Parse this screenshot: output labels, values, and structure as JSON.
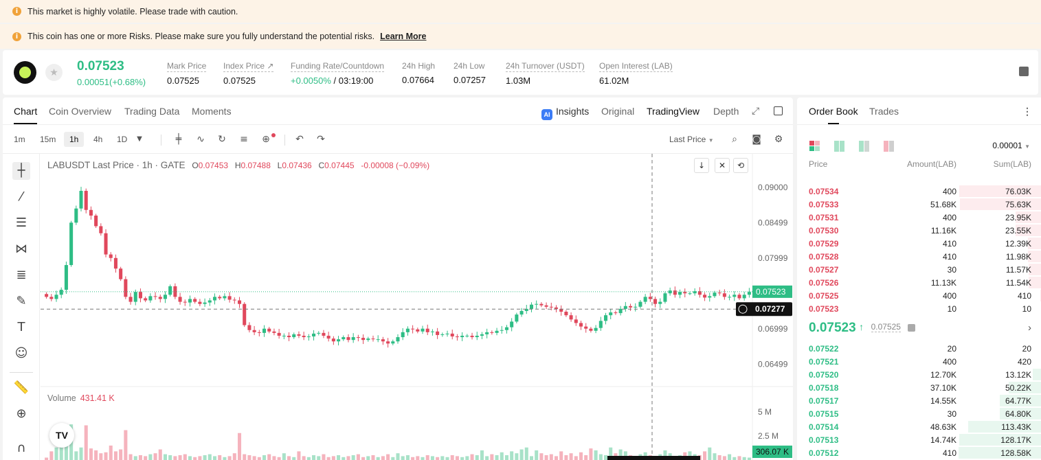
{
  "banners": {
    "warning1": "This market is highly volatile. Please trade with caution.",
    "warning2": "This coin has one or more Risks. Please make sure you fully understand the potential risks.",
    "learn_more": "Learn More"
  },
  "ticker": {
    "price": "0.07523",
    "change": "0.00051(+0.68%)",
    "stats": [
      {
        "label": "Mark Price",
        "value": "0.07525"
      },
      {
        "label": "Index Price ↗",
        "value": "0.07525"
      },
      {
        "label": "Funding Rate/Countdown",
        "value_green": "+0.0050%",
        "value": " / 03:19:00"
      },
      {
        "label": "24h High",
        "value": "0.07664"
      },
      {
        "label": "24h Low",
        "value": "0.07257"
      },
      {
        "label": "24h Turnover (USDT)",
        "value": "1.03M"
      },
      {
        "label": "Open Interest (LAB)",
        "value": "61.02M"
      }
    ]
  },
  "chart_tabs": [
    "Chart",
    "Coin Overview",
    "Trading Data",
    "Moments"
  ],
  "chart_views": {
    "insights": "Insights",
    "original": "Original",
    "tradingview": "TradingView",
    "depth": "Depth",
    "ai_badge": "AI"
  },
  "timeframes": [
    "1m",
    "15m",
    "1h",
    "4h",
    "1D"
  ],
  "last_price_select": "Last Price",
  "legend": {
    "symbol": "LABUSDT Last Price · 1h · GATE",
    "o_label": "O",
    "o": "0.07453",
    "h_label": "H",
    "h": "0.07488",
    "l_label": "L",
    "l": "0.07436",
    "c_label": "C",
    "c": "0.07445",
    "delta": "-0.00008 (−0.09%)"
  },
  "volume_legend": {
    "label": "Volume",
    "value": "431.41 K"
  },
  "tv_logo": "TV",
  "chart_data": {
    "type": "candlestick",
    "y_ticks": [
      0.09,
      0.08499,
      0.07999,
      0.06999,
      0.06499
    ],
    "y_tick_labels": [
      "0.09000",
      "0.08499",
      "0.07999",
      "0.06999",
      "0.06499"
    ],
    "ylim": [
      0.0622,
      0.0928
    ],
    "last_price": 0.07523,
    "last_price_label": "0.07523",
    "crosshair_price": 0.07277,
    "crosshair_label": "0.07277",
    "volume_ticks": [
      5000000,
      2500000
    ],
    "volume_tick_labels": [
      "5 M",
      "2.5 M"
    ],
    "volume_ylim": [
      0,
      7200000
    ],
    "crosshair_volume_label": "306.07 K",
    "closes": [
      0.0745,
      0.0742,
      0.0748,
      0.0755,
      0.079,
      0.085,
      0.087,
      0.0895,
      0.0868,
      0.086,
      0.0845,
      0.0835,
      0.0805,
      0.08,
      0.0785,
      0.077,
      0.0745,
      0.0738,
      0.0752,
      0.0743,
      0.074,
      0.0746,
      0.0745,
      0.0742,
      0.0748,
      0.076,
      0.0745,
      0.0738,
      0.0737,
      0.0742,
      0.0738,
      0.0735,
      0.0737,
      0.074,
      0.0745,
      0.0743,
      0.0746,
      0.0741,
      0.074,
      0.0735,
      0.0705,
      0.0698,
      0.0695,
      0.0694,
      0.07,
      0.0696,
      0.0694,
      0.069,
      0.069,
      0.0688,
      0.0692,
      0.069,
      0.0688,
      0.0689,
      0.0693,
      0.0694,
      0.069,
      0.0686,
      0.0682,
      0.0685,
      0.0688,
      0.0684,
      0.0688,
      0.0687,
      0.0684,
      0.0686,
      0.0685,
      0.0685,
      0.0682,
      0.0679,
      0.0682,
      0.0688,
      0.0695,
      0.07,
      0.0699,
      0.0696,
      0.07,
      0.0695,
      0.0696,
      0.0691,
      0.0692,
      0.0693,
      0.0689,
      0.0688,
      0.069,
      0.069,
      0.0688,
      0.069,
      0.0692,
      0.0695,
      0.0694,
      0.0697,
      0.0698,
      0.0702,
      0.071,
      0.072,
      0.0725,
      0.0728,
      0.0734,
      0.0735,
      0.0733,
      0.0731,
      0.073,
      0.0728,
      0.0724,
      0.0719,
      0.0713,
      0.0708,
      0.0703,
      0.07,
      0.0697,
      0.0701,
      0.0711,
      0.0719,
      0.0723,
      0.0722,
      0.0728,
      0.0732,
      0.073,
      0.0731,
      0.0738,
      0.0745,
      0.0742,
      0.0735,
      0.0738,
      0.075,
      0.0754,
      0.0748,
      0.0752,
      0.075,
      0.075,
      0.0753,
      0.0748,
      0.0744,
      0.0746,
      0.0751,
      0.075,
      0.0745,
      0.0745,
      0.0748,
      0.0743,
      0.0748,
      0.0752
    ],
    "volumes": [
      250000,
      900000,
      1300000,
      2600000,
      3000000,
      3700000,
      900000,
      1300000,
      3600000,
      1200000,
      1000000,
      700000,
      800000,
      1500000,
      900000,
      1100000,
      3100000,
      600000,
      400000,
      500000,
      400000,
      600000,
      700000,
      1100000,
      600000,
      500000,
      400000,
      500000,
      600000,
      400000,
      300000,
      400000,
      500000,
      600000,
      400000,
      500000,
      300000,
      400000,
      700000,
      2800000,
      600000,
      500000,
      400000,
      300000,
      500000,
      600000,
      400000,
      300000,
      700000,
      400000,
      300000,
      900000,
      400000,
      300000,
      500000,
      400000,
      600000,
      300000,
      400000,
      500000,
      300000,
      400000,
      500000,
      600000,
      300000,
      400000,
      500000,
      300000,
      400000,
      600000,
      300000,
      700000,
      400000,
      500000,
      300000,
      400000,
      300000,
      500000,
      400000,
      300000,
      400000,
      300000,
      500000,
      400000,
      300000,
      400000,
      600000,
      500000,
      1000000,
      400000,
      600000,
      500000,
      800000,
      500000,
      900000,
      700000,
      1100000,
      1300000,
      400000,
      1000000,
      700000,
      500000,
      600000,
      400000,
      900000,
      500000,
      700000,
      400000,
      800000,
      500000,
      1200000,
      1000000,
      600000,
      500000,
      1300000,
      700000,
      1100000,
      900000,
      500000,
      400000,
      600000,
      800000,
      500000,
      300000,
      600000,
      1000000,
      700000,
      400000,
      500000,
      800000,
      900000,
      600000,
      500000,
      900000,
      1300000,
      700000,
      500000,
      400000,
      600000,
      300000,
      400000,
      300000,
      250000
    ]
  },
  "order_book": {
    "tabs": [
      "Order Book",
      "Trades"
    ],
    "precision": "0.00001",
    "headers": {
      "price": "Price",
      "amount": "Amount(LAB)",
      "sum": "Sum(LAB)"
    },
    "asks": [
      {
        "price": "0.07534",
        "amount": "400",
        "sum": "76.03K",
        "depth": 0.99
      },
      {
        "price": "0.07533",
        "amount": "51.68K",
        "sum": "75.63K",
        "depth": 0.98
      },
      {
        "price": "0.07531",
        "amount": "400",
        "sum": "23.95K",
        "depth": 0.31
      },
      {
        "price": "0.07530",
        "amount": "11.16K",
        "sum": "23.55K",
        "depth": 0.31
      },
      {
        "price": "0.07529",
        "amount": "410",
        "sum": "12.39K",
        "depth": 0.16
      },
      {
        "price": "0.07528",
        "amount": "410",
        "sum": "11.98K",
        "depth": 0.16
      },
      {
        "price": "0.07527",
        "amount": "30",
        "sum": "11.57K",
        "depth": 0.15
      },
      {
        "price": "0.07526",
        "amount": "11.13K",
        "sum": "11.54K",
        "depth": 0.15
      },
      {
        "price": "0.07525",
        "amount": "400",
        "sum": "410",
        "depth": 0.01
      },
      {
        "price": "0.07523",
        "amount": "10",
        "sum": "10",
        "depth": 0.0
      }
    ],
    "mid_price": "0.07523",
    "mid_arrow": "↑",
    "mark_price": "0.07525",
    "bids": [
      {
        "price": "0.07522",
        "amount": "20",
        "sum": "20",
        "depth": 0.0
      },
      {
        "price": "0.07521",
        "amount": "400",
        "sum": "420",
        "depth": 0.0
      },
      {
        "price": "0.07520",
        "amount": "12.70K",
        "sum": "13.12K",
        "depth": 0.1
      },
      {
        "price": "0.07518",
        "amount": "37.10K",
        "sum": "50.22K",
        "depth": 0.39
      },
      {
        "price": "0.07517",
        "amount": "14.55K",
        "sum": "64.77K",
        "depth": 0.5
      },
      {
        "price": "0.07515",
        "amount": "30",
        "sum": "64.80K",
        "depth": 0.5
      },
      {
        "price": "0.07514",
        "amount": "48.63K",
        "sum": "113.43K",
        "depth": 0.88
      },
      {
        "price": "0.07513",
        "amount": "14.74K",
        "sum": "128.17K",
        "depth": 0.99
      },
      {
        "price": "0.07512",
        "amount": "410",
        "sum": "128.58K",
        "depth": 1.0
      }
    ]
  },
  "colors": {
    "up": "#2ebd85",
    "down": "#e0485c",
    "up_vol": "#a8e2c8",
    "down_vol": "#f5b3bd"
  }
}
